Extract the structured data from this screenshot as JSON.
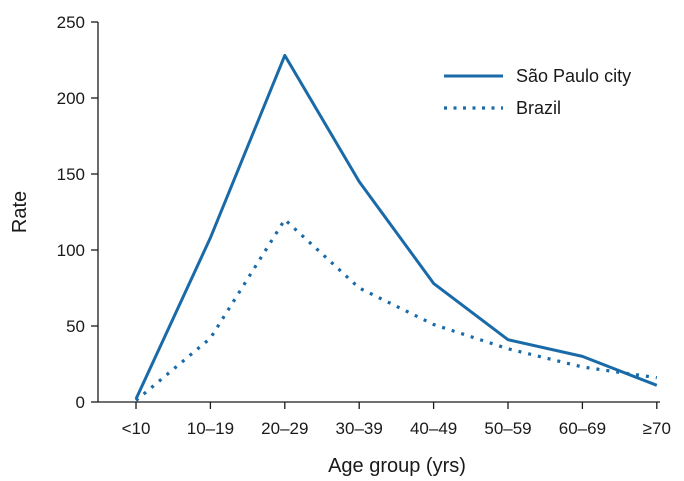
{
  "chart_data": {
    "type": "line",
    "title": "",
    "xlabel": "Age group (yrs)",
    "ylabel": "Rate",
    "categories": [
      "<10",
      "10–19",
      "20–29",
      "30–39",
      "40–49",
      "50–59",
      "60–69",
      "≥70"
    ],
    "ylim": [
      0,
      250
    ],
    "yticks": [
      0,
      50,
      100,
      150,
      200,
      250
    ],
    "grid": false,
    "legend_position": "top-right",
    "series": [
      {
        "name": "São Paulo city",
        "style": "solid",
        "color": "#1a6aa8",
        "values": [
          2,
          108,
          228,
          145,
          78,
          41,
          30,
          11
        ]
      },
      {
        "name": "Brazil",
        "style": "dotted",
        "color": "#1a6aa8",
        "values": [
          1,
          42,
          120,
          75,
          51,
          35,
          23,
          16
        ]
      }
    ]
  }
}
